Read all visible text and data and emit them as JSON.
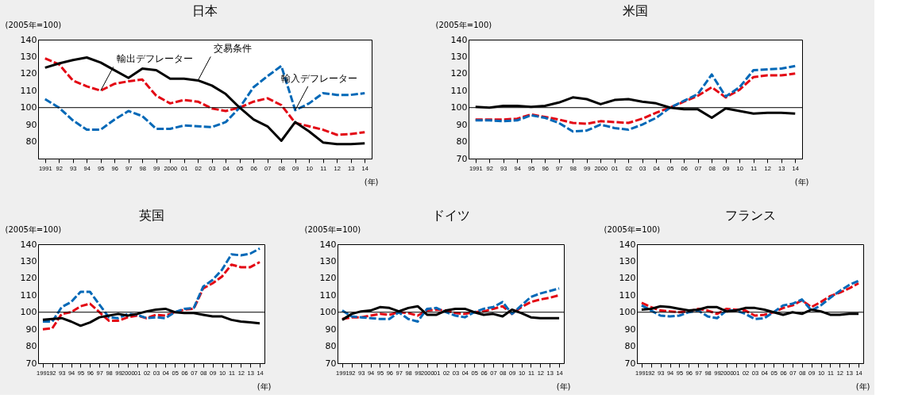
{
  "chart_data": [
    {
      "type": "line",
      "title": "日本",
      "ylabel": "(2005年=100)",
      "xlabel": "(年)",
      "categories": [
        "1991",
        "92",
        "93",
        "94",
        "95",
        "96",
        "97",
        "98",
        "99",
        "2000",
        "01",
        "02",
        "03",
        "04",
        "05",
        "06",
        "07",
        "08",
        "09",
        "10",
        "11",
        "12",
        "13",
        "14"
      ],
      "ylim": [
        70,
        140
      ],
      "yticks": [
        80,
        90,
        100,
        110,
        120,
        130,
        140
      ],
      "series": [
        {
          "color": "#e30613",
          "line_style": "dashed",
          "values": [
            129,
            125.5,
            116,
            112.5,
            110,
            114,
            115.5,
            116.5,
            107,
            102.5,
            104.5,
            103.5,
            99.5,
            98,
            100,
            103.5,
            105.5,
            101.5,
            91,
            89,
            87,
            84,
            84.5,
            85.5
          ]
        },
        {
          "color": "#0068b7",
          "line_style": "dashed",
          "values": [
            105,
            100,
            92.5,
            87,
            87,
            93,
            98,
            95,
            87.5,
            87.5,
            89.5,
            89,
            88.5,
            91.5,
            100,
            112,
            118.5,
            124.5,
            98.5,
            102.5,
            108.5,
            107.5,
            107.5,
            108.5
          ]
        },
        {
          "color": "#000000",
          "line_style": "solid",
          "values": [
            123.5,
            126,
            128,
            129.5,
            126.5,
            122,
            117.5,
            123,
            122,
            117,
            117,
            116,
            113,
            108,
            100,
            93,
            89,
            80.5,
            91.5,
            86,
            79.5,
            78.5,
            78.5,
            79
          ]
        }
      ],
      "ref_lines": [
        {
          "axis": "y",
          "value": 100
        }
      ],
      "annotations": [
        {
          "text": "輸出デフレーター",
          "x": "95",
          "y": 110
        },
        {
          "text": "交易条件",
          "x": "02",
          "y": 116
        },
        {
          "text": "輸入デフレーター",
          "x": "09",
          "y": 98.5
        }
      ]
    },
    {
      "type": "line",
      "title": "米国",
      "ylabel": "(2005年=100)",
      "xlabel": "(年)",
      "categories": [
        "1991",
        "92",
        "93",
        "94",
        "95",
        "96",
        "97",
        "98",
        "99",
        "2000",
        "01",
        "02",
        "03",
        "04",
        "05",
        "06",
        "07",
        "08",
        "09",
        "10",
        "11",
        "12",
        "13",
        "14"
      ],
      "ylim": [
        70,
        140
      ],
      "yticks": [
        70,
        80,
        90,
        100,
        110,
        120,
        130,
        140
      ],
      "series": [
        {
          "color": "#e30613",
          "line_style": "dashed",
          "values": [
            93,
            93,
            93,
            93.5,
            96,
            94.5,
            93,
            91,
            90.5,
            92,
            91.5,
            91,
            93.5,
            97,
            100,
            103.5,
            107,
            112,
            106,
            110.5,
            118,
            119,
            119,
            120
          ]
        },
        {
          "color": "#0068b7",
          "line_style": "dashed",
          "values": [
            92.5,
            92.5,
            92,
            92.5,
            95.5,
            94,
            91,
            86,
            86.5,
            90,
            88,
            87,
            90,
            94,
            100,
            104,
            108,
            119.5,
            106.5,
            112,
            122,
            122.5,
            123,
            124.5
          ]
        },
        {
          "color": "#000000",
          "line_style": "solid",
          "values": [
            100.5,
            100,
            101,
            101,
            100.5,
            101,
            103,
            106,
            105,
            102,
            104.5,
            105,
            103.5,
            102.5,
            100,
            99,
            99,
            94,
            99.5,
            98,
            96.5,
            97,
            97,
            96.5
          ]
        }
      ],
      "ref_lines": [
        {
          "axis": "y",
          "value": 100
        }
      ]
    },
    {
      "type": "line",
      "title": "英国",
      "ylabel": "(2005年=100)",
      "xlabel": "(年)",
      "categories": [
        "1991",
        "92",
        "93",
        "94",
        "95",
        "96",
        "97",
        "98",
        "99",
        "2000",
        "01",
        "02",
        "03",
        "04",
        "05",
        "06",
        "07",
        "08",
        "09",
        "10",
        "11",
        "12",
        "13",
        "14"
      ],
      "ylim": [
        70,
        140
      ],
      "yticks": [
        70,
        80,
        90,
        100,
        110,
        120,
        130,
        140
      ],
      "series": [
        {
          "color": "#e30613",
          "line_style": "dashed",
          "values": [
            90,
            90.5,
            99,
            100,
            103.5,
            105,
            100,
            95,
            95,
            97,
            98,
            96.5,
            98.5,
            98,
            100,
            101.5,
            102,
            114,
            117,
            121,
            128,
            126.5,
            126.5,
            129.5
          ]
        },
        {
          "color": "#0068b7",
          "line_style": "dashed",
          "values": [
            94.5,
            94.5,
            103,
            106,
            112,
            112,
            104.5,
            97,
            96.5,
            99,
            98.5,
            96.5,
            97,
            96.5,
            100,
            102,
            102.5,
            115,
            119,
            125,
            134,
            133.5,
            134.5,
            137.5
          ]
        },
        {
          "color": "#000000",
          "line_style": "solid",
          "values": [
            95.5,
            96,
            96.5,
            94.5,
            92,
            94,
            97,
            98,
            99,
            98,
            99,
            100.5,
            101.5,
            102,
            100,
            99.5,
            99.5,
            98.5,
            97.5,
            97.5,
            95.5,
            94.5,
            94,
            93.5
          ]
        }
      ],
      "ref_lines": [
        {
          "axis": "y",
          "value": 100
        }
      ]
    },
    {
      "type": "line",
      "title": "ドイツ",
      "ylabel": "(2005年=100)",
      "xlabel": "(年)",
      "categories": [
        "1991",
        "92",
        "93",
        "94",
        "95",
        "96",
        "97",
        "98",
        "99",
        "2000",
        "01",
        "02",
        "03",
        "04",
        "05",
        "06",
        "07",
        "08",
        "09",
        "10",
        "11",
        "12",
        "13",
        "14"
      ],
      "ylim": [
        70,
        140
      ],
      "yticks": [
        70,
        80,
        90,
        100,
        110,
        120,
        130,
        140
      ],
      "series": [
        {
          "color": "#e30613",
          "line_style": "dashed",
          "values": [
            96,
            97,
            97,
            98,
            99,
            98.5,
            100,
            99.5,
            98,
            101,
            101.5,
            101,
            99.5,
            99,
            100,
            100.5,
            102,
            103.5,
            99,
            103,
            106,
            107.5,
            108.5,
            110
          ]
        },
        {
          "color": "#0068b7",
          "line_style": "dashed",
          "values": [
            101,
            97.5,
            97,
            96.5,
            96,
            96,
            100,
            96,
            94.5,
            102,
            102.5,
            100,
            98,
            97,
            100,
            102,
            103,
            106,
            99,
            104,
            109,
            111,
            112.5,
            114
          ]
        },
        {
          "color": "#000000",
          "line_style": "solid",
          "values": [
            95.5,
            99,
            100.5,
            101,
            103,
            102.5,
            100.5,
            102.5,
            103.5,
            98.5,
            98.5,
            101,
            102,
            102,
            100,
            98.5,
            99,
            97.5,
            101.5,
            99.5,
            97,
            96.5,
            96.5,
            96.5
          ]
        }
      ],
      "ref_lines": [
        {
          "axis": "y",
          "value": 100
        }
      ]
    },
    {
      "type": "line",
      "title": "フランス",
      "ylabel": "(2005年=100)",
      "xlabel": "(年)",
      "categories": [
        "1991",
        "92",
        "93",
        "94",
        "95",
        "96",
        "97",
        "98",
        "99",
        "2000",
        "01",
        "02",
        "03",
        "04",
        "05",
        "06",
        "07",
        "08",
        "09",
        "10",
        "11",
        "12",
        "13",
        "14"
      ],
      "ylim": [
        70,
        140
      ],
      "yticks": [
        70,
        80,
        90,
        100,
        110,
        120,
        130,
        140
      ],
      "series": [
        {
          "color": "#e30613",
          "line_style": "dashed",
          "values": [
            105.5,
            103,
            101,
            100.5,
            100,
            100.5,
            102,
            101,
            99,
            102,
            101.5,
            101,
            98,
            98.5,
            100,
            102.5,
            104,
            107,
            103,
            106,
            109.5,
            111.5,
            114,
            117
          ]
        },
        {
          "color": "#0068b7",
          "line_style": "dashed",
          "values": [
            104,
            101,
            98,
            97.5,
            98,
            100,
            101,
            97.5,
            96.5,
            101,
            101,
            99,
            96,
            96.5,
            100,
            104,
            105,
            107.5,
            101,
            104,
            108.5,
            112.5,
            116,
            118.5
          ]
        },
        {
          "color": "#000000",
          "line_style": "solid",
          "values": [
            101.5,
            102,
            103.5,
            103,
            102,
            101,
            101.5,
            103,
            103,
            100.5,
            101,
            102.5,
            102.5,
            101.5,
            100,
            98.5,
            100,
            99,
            101.5,
            100.5,
            98.5,
            98.5,
            99,
            99
          ]
        }
      ],
      "ref_lines": [
        {
          "axis": "y",
          "value": 100
        }
      ]
    }
  ]
}
